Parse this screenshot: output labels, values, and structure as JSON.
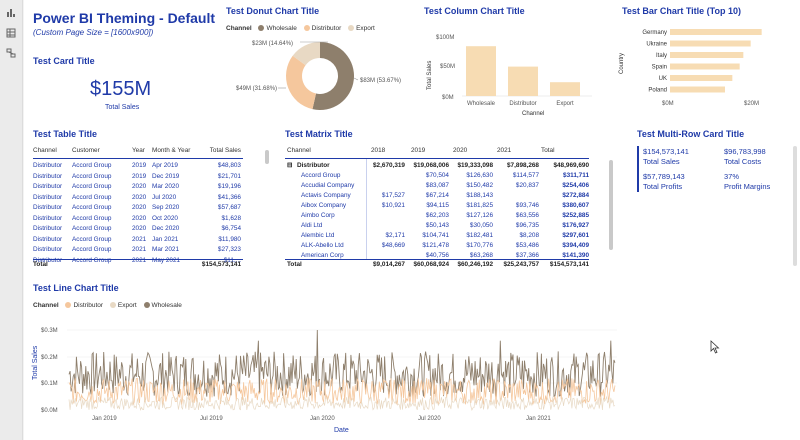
{
  "colors": {
    "accent": "#1f3aa8",
    "wholesale": "#8e7f6c",
    "distributor": "#f5c79d",
    "export": "#e8d9c4",
    "bar": "#f7dcb3"
  },
  "page": {
    "title": "Power BI Theming - Default",
    "subtitle": "(Custom Page Size = [1600x900])"
  },
  "rail_icons": [
    "bar-chart-icon",
    "table-icon",
    "model-icon"
  ],
  "card": {
    "title": "Test Card Title",
    "value": "$155M",
    "label": "Total Sales"
  },
  "donut": {
    "title": "Test Donut Chart Title",
    "legend_label": "Channel",
    "legend": [
      "Wholesale",
      "Distributor",
      "Export"
    ],
    "labels": [
      "$83M (53.67%)",
      "$49M (31.68%)",
      "$23M (14.64%)"
    ],
    "chart_data": {
      "type": "pie",
      "categories": [
        "Wholesale",
        "Distributor",
        "Export"
      ],
      "values": [
        83,
        49,
        23
      ],
      "percent": [
        53.67,
        31.68,
        14.64
      ],
      "unit": "$M"
    }
  },
  "column": {
    "title": "Test Column Chart Title",
    "ylabel": "Total Sales",
    "xlabel": "Channel",
    "yticks": [
      "$100M",
      "$50M",
      "$0M"
    ],
    "chart_data": {
      "type": "bar",
      "categories": [
        "Wholesale",
        "Distributor",
        "Export"
      ],
      "values": [
        83,
        49,
        23
      ],
      "ylim": [
        0,
        100
      ],
      "unit": "$M"
    }
  },
  "bar": {
    "title": "Test Bar Chart Title (Top 10)",
    "ylabel": "Country",
    "xticks": [
      "$0M",
      "$20M"
    ],
    "chart_data": {
      "type": "bar",
      "orientation": "horizontal",
      "categories": [
        "Germany",
        "Ukraine",
        "Italy",
        "Spain",
        "UK",
        "Poland"
      ],
      "values": [
        25,
        22,
        20,
        19,
        17,
        15
      ],
      "xlim": [
        0,
        30
      ],
      "unit": "$M"
    }
  },
  "table": {
    "title": "Test Table Title",
    "columns": [
      "Channel",
      "Customer",
      "Year",
      "Month & Year",
      "Total Sales"
    ],
    "rows": [
      [
        "Distributor",
        "Accord Group",
        "2019",
        "Apr 2019",
        "$48,803"
      ],
      [
        "Distributor",
        "Accord Group",
        "2019",
        "Dec 2019",
        "$21,701"
      ],
      [
        "Distributor",
        "Accord Group",
        "2020",
        "Mar 2020",
        "$19,196"
      ],
      [
        "Distributor",
        "Accord Group",
        "2020",
        "Jul 2020",
        "$41,366"
      ],
      [
        "Distributor",
        "Accord Group",
        "2020",
        "Sep 2020",
        "$57,687"
      ],
      [
        "Distributor",
        "Accord Group",
        "2020",
        "Oct 2020",
        "$1,628"
      ],
      [
        "Distributor",
        "Accord Group",
        "2020",
        "Dec 2020",
        "$6,754"
      ],
      [
        "Distributor",
        "Accord Group",
        "2021",
        "Jan 2021",
        "$11,980"
      ],
      [
        "Distributor",
        "Accord Group",
        "2021",
        "Mar 2021",
        "$27,323"
      ],
      [
        "Distributor",
        "Accord Group",
        "2021",
        "May 2021",
        "$11,..."
      ]
    ],
    "total_label": "Total",
    "total_value": "$154,573,141"
  },
  "matrix": {
    "title": "Test Matrix Title",
    "columns": [
      "Channel",
      "2018",
      "2019",
      "2020",
      "2021",
      "Total"
    ],
    "rows": [
      {
        "name": "Distributor",
        "bold": true,
        "toggle": "⊟",
        "values": [
          "$2,670,319",
          "$19,068,006",
          "$19,333,098",
          "$7,898,268",
          "$48,969,690"
        ]
      },
      {
        "name": "Accord Group",
        "values": [
          "",
          "$70,504",
          "$126,630",
          "$114,577",
          "$311,711"
        ]
      },
      {
        "name": "Accudial Company",
        "values": [
          "",
          "$83,087",
          "$150,482",
          "$20,837",
          "$254,406"
        ]
      },
      {
        "name": "Actavis Company",
        "values": [
          "$17,527",
          "$67,214",
          "$188,143",
          "",
          "$272,884"
        ]
      },
      {
        "name": "Aibox Company",
        "values": [
          "$10,921",
          "$94,115",
          "$181,825",
          "$93,746",
          "$380,607"
        ]
      },
      {
        "name": "Aimbo Corp",
        "values": [
          "",
          "$62,203",
          "$127,126",
          "$63,556",
          "$252,885"
        ]
      },
      {
        "name": "Aldi Ltd",
        "values": [
          "",
          "$50,143",
          "$30,050",
          "$96,735",
          "$176,927"
        ]
      },
      {
        "name": "Alembic Ltd",
        "values": [
          "$2,171",
          "$104,741",
          "$182,481",
          "$8,208",
          "$297,601"
        ]
      },
      {
        "name": "ALK-Abello Ltd",
        "values": [
          "$48,669",
          "$121,478",
          "$170,776",
          "$53,486",
          "$394,409"
        ]
      },
      {
        "name": "American Corp",
        "values": [
          "",
          "$40,756",
          "$63,268",
          "$37,366",
          "$141,390"
        ]
      }
    ],
    "total_label": "Total",
    "total_values": [
      "$9,014,267",
      "$60,068,924",
      "$60,246,192",
      "$25,243,757",
      "$154,573,141"
    ]
  },
  "multirow": {
    "title": "Test Multi-Row Card Title",
    "items": [
      {
        "value": "$154,573,141",
        "label": "Total Sales"
      },
      {
        "value": "$96,783,998",
        "label": "Total Costs"
      },
      {
        "value": "$57,789,143",
        "label": "Total Profits"
      },
      {
        "value": "37%",
        "label": "Profit Margins"
      }
    ]
  },
  "line": {
    "title": "Test Line Chart Title",
    "legend_label": "Channel",
    "legend": [
      "Distributor",
      "Export",
      "Wholesale"
    ],
    "ylabel": "Total Sales",
    "xlabel": "Date",
    "yticks": [
      "$0.3M",
      "$0.2M",
      "$0.1M",
      "$0.0M"
    ],
    "xticks": [
      "Jan 2019",
      "Jul 2019",
      "Jan 2020",
      "Jul 2020",
      "Jan 2021"
    ],
    "chart_data": {
      "type": "line",
      "x_range": [
        "2018-05",
        "2021-12"
      ],
      "series": [
        {
          "name": "Wholesale",
          "typical_range": [
            0.05,
            0.22
          ],
          "peak": 0.3
        },
        {
          "name": "Distributor",
          "typical_range": [
            0.02,
            0.12
          ]
        },
        {
          "name": "Export",
          "typical_range": [
            0.0,
            0.05
          ]
        }
      ],
      "ylim": [
        0,
        0.3
      ],
      "unit": "$M"
    }
  }
}
